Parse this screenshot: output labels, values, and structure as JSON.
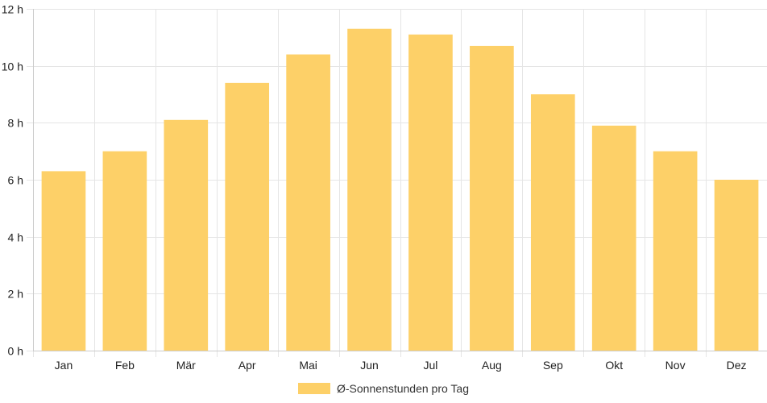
{
  "chart_data": {
    "type": "bar",
    "categories": [
      "Jan",
      "Feb",
      "Mär",
      "Apr",
      "Mai",
      "Jun",
      "Jul",
      "Aug",
      "Sep",
      "Okt",
      "Nov",
      "Dez"
    ],
    "series": [
      {
        "name": "Ø-Sonnenstunden pro Tag",
        "values": [
          6.3,
          7.0,
          8.1,
          9.4,
          10.4,
          11.3,
          11.1,
          10.7,
          9.0,
          7.9,
          7.0,
          6.0
        ],
        "color": "#fdd068"
      }
    ],
    "y_ticks": [
      "0 h",
      "2 h",
      "4 h",
      "6 h",
      "8 h",
      "10 h",
      "12 h"
    ],
    "ylim": [
      0,
      12
    ],
    "y_step": 2,
    "grid": true,
    "legend_position": "bottom-center"
  },
  "colors": {
    "bar": "#fdd068",
    "grid": "#e5e5e5",
    "axis": "#cccccc",
    "text": "#222222"
  }
}
